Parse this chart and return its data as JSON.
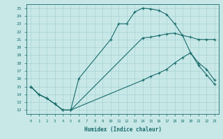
{
  "xlabel": "Humidex (Indice chaleur)",
  "bg_color": "#c8e8e8",
  "line_color": "#1a6b6b",
  "grid_color": "#a0cccc",
  "xlim": [
    -0.5,
    23.5
  ],
  "ylim": [
    11.5,
    25.5
  ],
  "xticks": [
    0,
    1,
    2,
    3,
    4,
    5,
    6,
    7,
    8,
    9,
    10,
    11,
    12,
    13,
    14,
    15,
    16,
    17,
    18,
    19,
    20,
    21,
    22,
    23
  ],
  "yticks": [
    12,
    13,
    14,
    15,
    16,
    17,
    18,
    19,
    20,
    21,
    22,
    23,
    24,
    25
  ],
  "line1_x": [
    0,
    1,
    2,
    3,
    4,
    5,
    6,
    10,
    11,
    12,
    13,
    14,
    15,
    16,
    17,
    18,
    19,
    20,
    21,
    22,
    23
  ],
  "line1_y": [
    15,
    14,
    13.5,
    12.8,
    12.0,
    12.0,
    16.0,
    21.0,
    23.0,
    23.0,
    24.5,
    25.0,
    24.9,
    24.7,
    24.2,
    23.0,
    21.5,
    19.3,
    17.7,
    16.5,
    15.3
  ],
  "line2_x": [
    0,
    1,
    2,
    3,
    4,
    5,
    14,
    15,
    16,
    17,
    18,
    19,
    20,
    21,
    22,
    23
  ],
  "line2_y": [
    15,
    14,
    13.5,
    12.8,
    12.0,
    12.0,
    21.2,
    21.3,
    21.5,
    21.7,
    21.8,
    21.5,
    21.3,
    21.0,
    21.0,
    21.0
  ],
  "line3_x": [
    0,
    1,
    2,
    3,
    4,
    5,
    14,
    15,
    16,
    17,
    18,
    19,
    20,
    21,
    22,
    23
  ],
  "line3_y": [
    15,
    14,
    13.5,
    12.8,
    12.0,
    12.0,
    15.8,
    16.3,
    16.7,
    17.2,
    18.0,
    18.7,
    19.3,
    18.0,
    17.2,
    15.8
  ]
}
